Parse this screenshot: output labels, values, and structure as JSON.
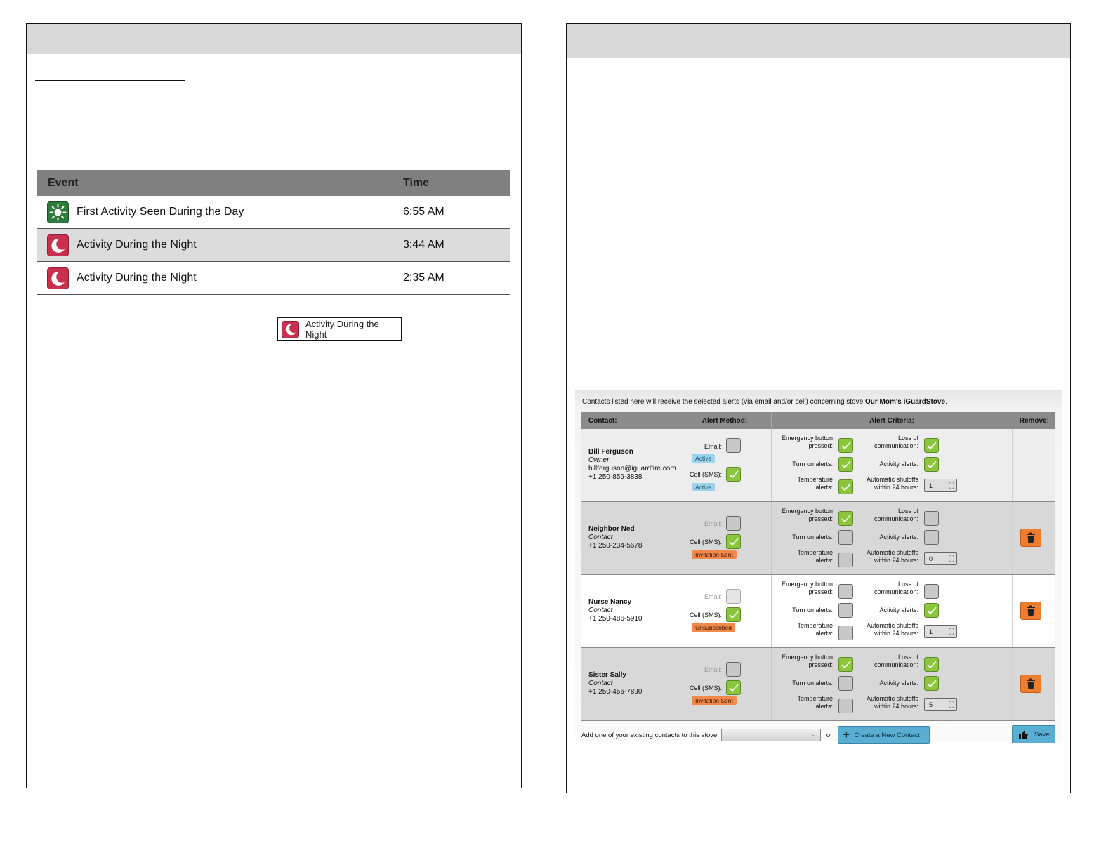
{
  "events": {
    "header": {
      "event": "Event",
      "time": "Time"
    },
    "rows": [
      {
        "icon": "sun-icon",
        "label": "First Activity Seen During the Day",
        "time": "6:55 AM"
      },
      {
        "icon": "moon-icon",
        "label": "Activity During the Night",
        "time": "3:44 AM"
      },
      {
        "icon": "moon-icon",
        "label": "Activity During the Night",
        "time": "2:35 AM"
      }
    ],
    "legend_label": "Activity During the Night"
  },
  "contacts": {
    "intro_prefix": "Contacts listed here will receive the selected alerts (via email and/or cell) concerning stove ",
    "intro_stove": "Our Mom's iGuardStove",
    "intro_suffix": ".",
    "columns": {
      "contact": "Contact:",
      "method": "Alert Method:",
      "criteria": "Alert Criteria:",
      "remove": "Remove:"
    },
    "labels": {
      "email": "Email:",
      "cell": "Cell (SMS):",
      "emergency_1": "Emergency button",
      "emergency_2": "pressed:",
      "turn_on": "Turn on alerts:",
      "temp_1": "Temperature",
      "temp_2": "alerts:",
      "loss_1": "Loss of",
      "loss_2": "communication:",
      "activity": "Activity alerts:",
      "shutoff_1": "Automatic shutoffs",
      "shutoff_2": "within 24 hours:"
    },
    "rows": [
      {
        "name": "Bill Ferguson",
        "role": "Owner",
        "email": "billferguson@iguardfire.com",
        "phone": "+1 250-859-3838",
        "email_status": "Active",
        "cell_status": "Active",
        "shutoffs": "1"
      },
      {
        "name": "Neighbor Ned",
        "role": "Contact",
        "phone": "+1 250-234-5678",
        "cell_status": "Invitation Sent",
        "shutoffs": "0"
      },
      {
        "name": "Nurse Nancy",
        "role": "Contact",
        "phone": "+1 250-486-5910",
        "cell_status": "Unsubscribed",
        "shutoffs": "1"
      },
      {
        "name": "Sister Sally",
        "role": "Contact",
        "phone": "+1 250-456-7890",
        "cell_status": "Invitation Sent",
        "shutoffs": "5"
      }
    ],
    "footer": {
      "add_label": "Add one of your existing contacts to this stove:",
      "select_value": "",
      "or": "or",
      "create_label": "Create a New Contact",
      "save_label": "Save"
    }
  },
  "colors": {
    "checked": "#8cc63f",
    "unchecked": "#c8c8c8",
    "badge_active": "#9bd3ef",
    "badge_orange": "#f2884a",
    "button_blue": "#5aaed2",
    "trash_orange": "#ef7d2e"
  }
}
